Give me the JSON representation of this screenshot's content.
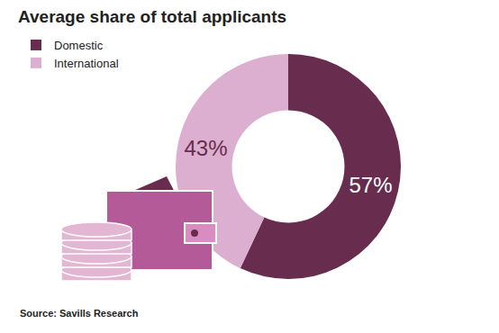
{
  "chart_data": {
    "type": "pie",
    "title": "Average share of total applicants",
    "categories": [
      "Domestic",
      "International"
    ],
    "values": [
      57,
      43
    ],
    "value_labels": [
      "57%",
      "43%"
    ],
    "colors": [
      "#672c4e",
      "#dcaed0"
    ],
    "data_labels": true,
    "legend": "top left",
    "source": "Source: Savills Research"
  }
}
